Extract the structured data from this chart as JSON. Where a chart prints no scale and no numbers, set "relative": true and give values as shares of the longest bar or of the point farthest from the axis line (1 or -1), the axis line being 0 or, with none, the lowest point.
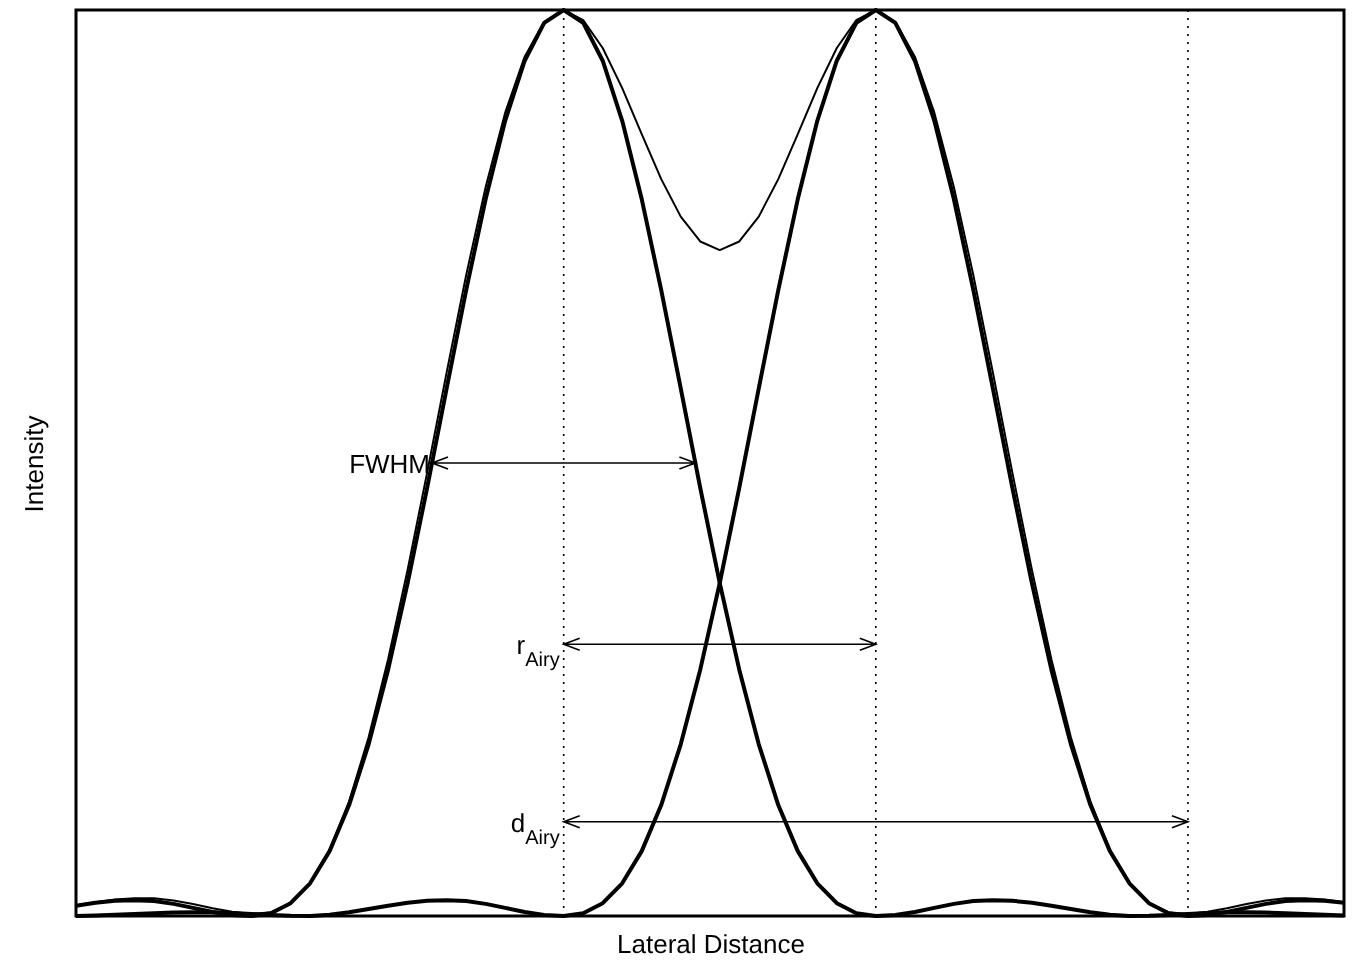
{
  "chart_data": {
    "type": "line",
    "relative": true,
    "xlabel": "Lateral Distance",
    "ylabel": "Intensity",
    "categories": [
      null,
      null,
      null,
      null,
      null,
      null,
      null,
      null,
      null,
      null,
      null,
      null,
      null,
      null,
      null,
      null,
      null,
      null,
      null,
      null,
      null,
      null,
      null,
      null,
      null,
      null,
      null,
      null,
      null,
      null,
      null,
      null,
      null,
      null,
      null,
      null,
      null,
      null,
      null,
      null,
      null,
      null,
      null,
      null,
      null,
      null,
      null,
      null,
      null,
      null,
      null,
      null,
      null,
      null,
      null,
      null,
      null,
      null,
      null,
      null,
      null,
      null,
      null,
      null,
      null,
      null
    ],
    "series": [
      {
        "color": "#000000",
        "values": [
          0.0114,
          0.0146,
          0.0168,
          0.0175,
          0.0165,
          0.0134,
          0.009,
          0.0045,
          0.0012,
          0,
          0.003,
          0.0141,
          0.0361,
          0.0716,
          0.1225,
          0.1895,
          0.2719,
          0.3675,
          0.4726,
          0.5824,
          0.6908,
          0.7913,
          0.8777,
          0.944,
          0.9858,
          1,
          0.9858,
          0.944,
          0.8777,
          0.7913,
          0.6908,
          0.5824,
          0.4726,
          0.3675,
          0.2719,
          0.1895,
          0.1225,
          0.0716,
          0.0361,
          0.0141,
          0.003,
          0,
          0.0012,
          0.0045,
          0.009,
          0.0134,
          0.0165,
          0.0175,
          0.0168,
          0.0146,
          0.0114,
          0.0077,
          0.0041,
          0.0014,
          0.0001,
          0.0003,
          0.0012,
          0.0023,
          0.0034,
          0.0041,
          0.0042,
          0.0038,
          0.0031,
          0.0022,
          0.0013,
          0.0006
        ]
      },
      {
        "color": "#000000",
        "values": [
          0.0001,
          0.0006,
          0.0013,
          0.0022,
          0.0031,
          0.0038,
          0.0042,
          0.0041,
          0.0034,
          0.0023,
          0.0012,
          0.0003,
          0.0001,
          0.0014,
          0.0041,
          0.0077,
          0.0114,
          0.0146,
          0.0168,
          0.0175,
          0.0165,
          0.0134,
          0.009,
          0.0045,
          0.0012,
          0,
          0.003,
          0.0141,
          0.0361,
          0.0716,
          0.1225,
          0.1895,
          0.2719,
          0.3675,
          0.4726,
          0.5824,
          0.6908,
          0.7913,
          0.8777,
          0.944,
          0.9858,
          1,
          0.9858,
          0.944,
          0.8777,
          0.7913,
          0.6908,
          0.5824,
          0.4726,
          0.3675,
          0.2719,
          0.1895,
          0.1225,
          0.0716,
          0.0361,
          0.0141,
          0.003,
          0,
          0.0012,
          0.0045,
          0.009,
          0.0134,
          0.0165,
          0.0175,
          0.0168,
          0.0146
        ]
      },
      {
        "color": "#000000",
        "values": [
          0.0115,
          0.0152,
          0.0181,
          0.0197,
          0.0196,
          0.0172,
          0.0132,
          0.0086,
          0.0046,
          0.0023,
          0.0042,
          0.0144,
          0.0362,
          0.073,
          0.1266,
          0.1972,
          0.2833,
          0.3821,
          0.4894,
          0.5999,
          0.7073,
          0.8047,
          0.8867,
          0.9485,
          0.987,
          1,
          0.9888,
          0.9581,
          0.9138,
          0.8629,
          0.8133,
          0.7719,
          0.7445,
          0.735,
          0.7445,
          0.7719,
          0.8133,
          0.8629,
          0.9138,
          0.9581,
          0.9888,
          1,
          0.987,
          0.9485,
          0.8867,
          0.8047,
          0.7073,
          0.5999,
          0.4894,
          0.3821,
          0.2833,
          0.1972,
          0.1266,
          0.073,
          0.0362,
          0.0144,
          0.0042,
          0.0023,
          0.0046,
          0.0086,
          0.0132,
          0.0172,
          0.0196,
          0.0197,
          0.0181,
          0.0152
        ]
      }
    ],
    "grid": "x",
    "annotations": [
      "FWHM",
      "r$_{Airy}$",
      "d$_{Airy}$"
    ]
  }
}
